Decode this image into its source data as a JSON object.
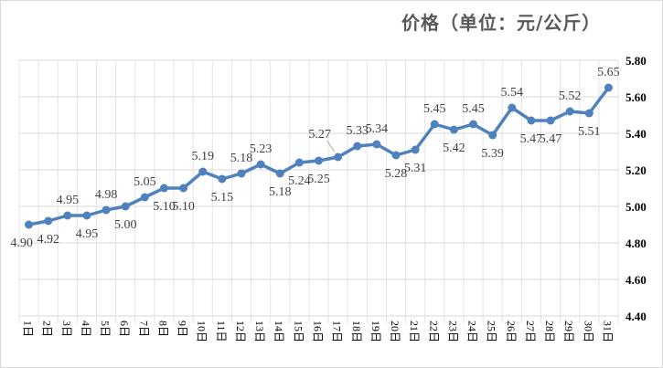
{
  "chart_data": {
    "type": "line",
    "title": "价格（单位：元/公斤）",
    "xlabel": "",
    "ylabel": "",
    "categories": [
      "1日",
      "2日",
      "3日",
      "4日",
      "5日",
      "6日",
      "7日",
      "8日",
      "9日",
      "10日",
      "11日",
      "12日",
      "13日",
      "14日",
      "15日",
      "16日",
      "17日",
      "18日",
      "19日",
      "20日",
      "21日",
      "22日",
      "23日",
      "24日",
      "25日",
      "26日",
      "27日",
      "28日",
      "29日",
      "30日",
      "31日"
    ],
    "series": [
      {
        "name": "价格",
        "color": "#4f81bd",
        "values": [
          4.9,
          4.92,
          4.95,
          4.95,
          4.98,
          5.0,
          5.05,
          5.1,
          5.1,
          5.19,
          5.15,
          5.18,
          5.23,
          5.18,
          5.24,
          5.25,
          5.27,
          5.33,
          5.34,
          5.28,
          5.31,
          5.45,
          5.42,
          5.45,
          5.39,
          5.54,
          5.47,
          5.47,
          5.52,
          5.51,
          5.65
        ]
      }
    ],
    "ylim": [
      4.4,
      5.8
    ],
    "yticks": [
      "4.40",
      "4.60",
      "4.80",
      "5.00",
      "5.20",
      "5.40",
      "5.60",
      "5.80"
    ],
    "y_axis_side": "right",
    "grid": true,
    "legend": "none"
  }
}
